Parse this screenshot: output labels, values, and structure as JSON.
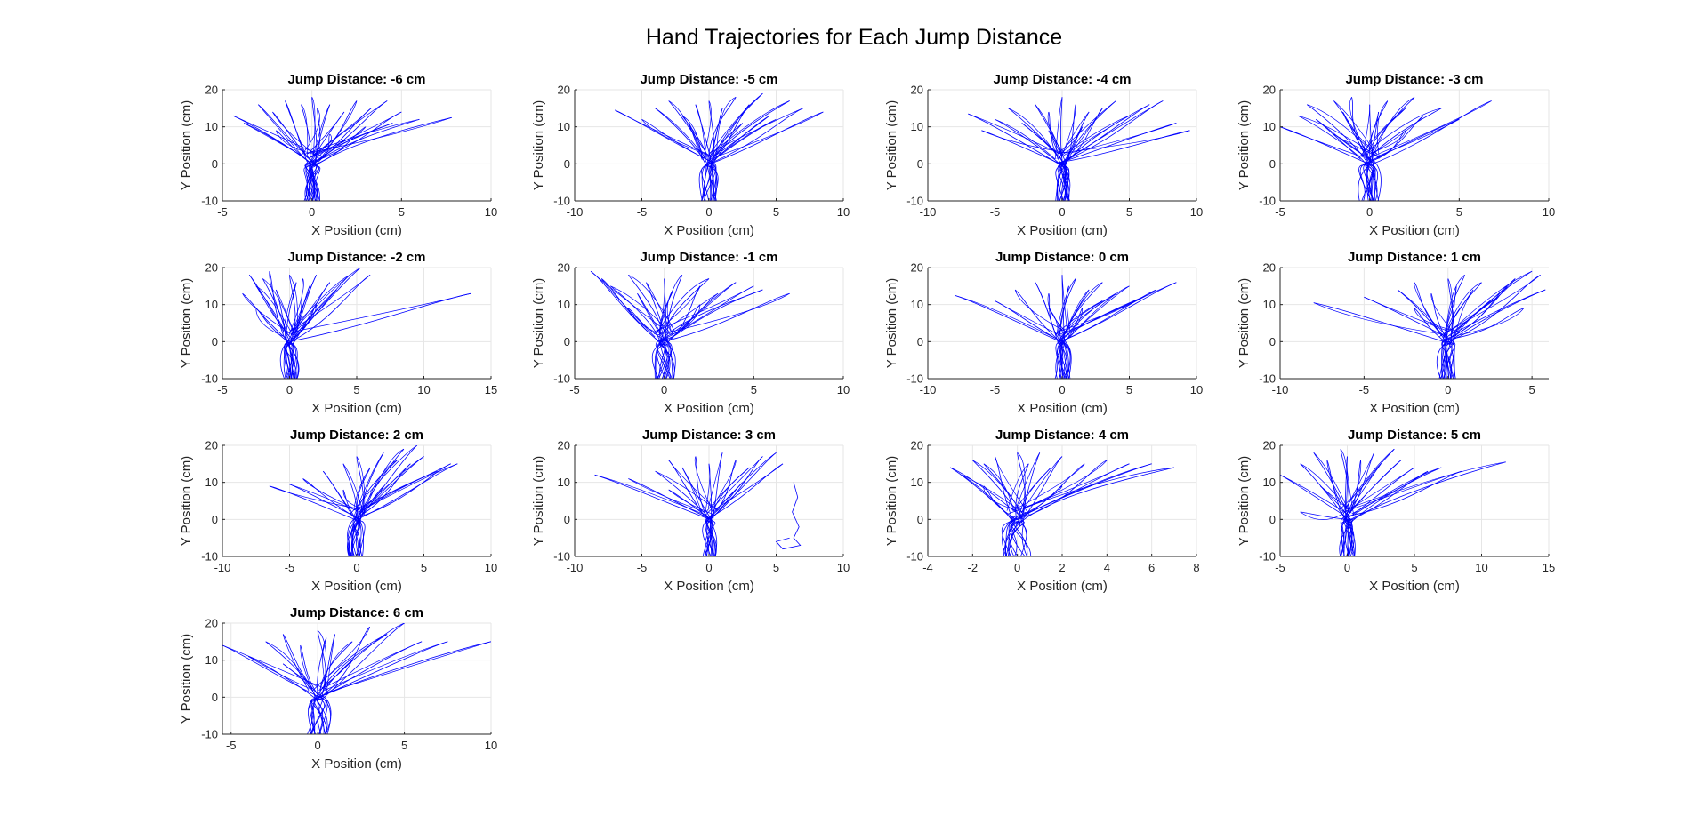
{
  "figure": {
    "title": "Hand Trajectories for Each Jump Distance",
    "line_color": "#0000ff",
    "grid_color": "#e6e6e6",
    "axis_color": "#262626"
  },
  "chart_data": [
    {
      "type": "line",
      "title": "Jump Distance: -6 cm",
      "xlabel": "X Position (cm)",
      "ylabel": "Y Position (cm)",
      "xlim": [
        -5,
        10
      ],
      "ylim": [
        -10,
        20
      ],
      "xticks": [
        -5,
        0,
        5,
        10
      ],
      "yticks": [
        -10,
        0,
        10,
        20
      ],
      "grid": true,
      "center": [
        0,
        0
      ],
      "endpoints": [
        [
          -4.4,
          13
        ],
        [
          -3.8,
          11
        ],
        [
          -3,
          16
        ],
        [
          -2.2,
          14
        ],
        [
          -1.5,
          17
        ],
        [
          -0.6,
          16
        ],
        [
          0,
          18
        ],
        [
          0.3,
          15
        ],
        [
          1,
          16
        ],
        [
          1.8,
          14
        ],
        [
          2.5,
          17
        ],
        [
          3.3,
          15
        ],
        [
          4.2,
          17
        ],
        [
          5,
          14
        ],
        [
          6,
          12
        ],
        [
          7.8,
          12.5
        ],
        [
          3,
          10
        ],
        [
          4.5,
          11
        ],
        [
          -2,
          9
        ],
        [
          1,
          8
        ]
      ],
      "extra_paths": []
    },
    {
      "type": "line",
      "title": "Jump Distance: -5 cm",
      "xlabel": "X Position (cm)",
      "ylabel": "Y Position (cm)",
      "xlim": [
        -10,
        10
      ],
      "ylim": [
        -10,
        20
      ],
      "xticks": [
        -10,
        -5,
        0,
        5,
        10
      ],
      "yticks": [
        -10,
        0,
        10,
        20
      ],
      "grid": true,
      "center": [
        0,
        0
      ],
      "endpoints": [
        [
          -7,
          14.5
        ],
        [
          -5,
          12
        ],
        [
          -4,
          15
        ],
        [
          -3,
          17
        ],
        [
          -2,
          13
        ],
        [
          -1,
          16
        ],
        [
          0,
          17
        ],
        [
          1,
          15
        ],
        [
          2,
          18
        ],
        [
          3,
          16
        ],
        [
          4,
          19
        ],
        [
          5,
          12
        ],
        [
          6,
          17
        ],
        [
          7,
          15
        ],
        [
          8.5,
          14
        ],
        [
          -1.5,
          11
        ],
        [
          2.5,
          11
        ],
        [
          4.5,
          13
        ]
      ],
      "extra_paths": []
    },
    {
      "type": "line",
      "title": "Jump Distance: -4 cm",
      "xlabel": "X Position (cm)",
      "ylabel": "Y Position (cm)",
      "xlim": [
        -10,
        10
      ],
      "ylim": [
        -10,
        20
      ],
      "xticks": [
        -10,
        -5,
        0,
        5,
        10
      ],
      "yticks": [
        -10,
        0,
        10,
        20
      ],
      "grid": true,
      "center": [
        0,
        0
      ],
      "endpoints": [
        [
          -7,
          13.5
        ],
        [
          -6,
          9
        ],
        [
          -5,
          12
        ],
        [
          -4,
          15
        ],
        [
          -3,
          11
        ],
        [
          -2,
          16
        ],
        [
          -1,
          14
        ],
        [
          0,
          18
        ],
        [
          1,
          16
        ],
        [
          2,
          14
        ],
        [
          3,
          15
        ],
        [
          4,
          17
        ],
        [
          5,
          13
        ],
        [
          6.5,
          16
        ],
        [
          7.5,
          17
        ],
        [
          8.5,
          11
        ],
        [
          9.5,
          9
        ],
        [
          1.5,
          10
        ],
        [
          -1,
          9
        ]
      ],
      "extra_paths": []
    },
    {
      "type": "line",
      "title": "Jump Distance: -3 cm",
      "xlabel": "X Position (cm)",
      "ylabel": "Y Position (cm)",
      "xlim": [
        -5,
        10
      ],
      "ylim": [
        -10,
        20
      ],
      "xticks": [
        -5,
        0,
        5,
        10
      ],
      "yticks": [
        -10,
        0,
        10,
        20
      ],
      "grid": true,
      "center": [
        0,
        0
      ],
      "endpoints": [
        [
          -5,
          10
        ],
        [
          -4,
          13
        ],
        [
          -3.5,
          16
        ],
        [
          -3,
          12
        ],
        [
          -2,
          17
        ],
        [
          -1.5,
          14
        ],
        [
          -1,
          18
        ],
        [
          0,
          16
        ],
        [
          0.5,
          14
        ],
        [
          1,
          17
        ],
        [
          2,
          15
        ],
        [
          2.5,
          18
        ],
        [
          3,
          13
        ],
        [
          4,
          15
        ],
        [
          5,
          12
        ],
        [
          6.8,
          17
        ],
        [
          -2,
          8
        ],
        [
          2,
          9
        ]
      ],
      "extra_paths": []
    },
    {
      "type": "line",
      "title": "Jump Distance: -2 cm",
      "xlabel": "X Position (cm)",
      "ylabel": "Y Position (cm)",
      "xlim": [
        -5,
        15
      ],
      "ylim": [
        -10,
        20
      ],
      "xticks": [
        -5,
        0,
        5,
        10,
        15
      ],
      "yticks": [
        -10,
        0,
        10,
        20
      ],
      "grid": true,
      "center": [
        0,
        0
      ],
      "endpoints": [
        [
          -3.5,
          13
        ],
        [
          -3,
          18
        ],
        [
          -2.5,
          15
        ],
        [
          -2,
          17
        ],
        [
          -1.5,
          19
        ],
        [
          -1,
          14
        ],
        [
          0,
          18
        ],
        [
          0.5,
          16
        ],
        [
          1,
          17
        ],
        [
          1.5,
          15
        ],
        [
          2,
          18
        ],
        [
          3,
          16
        ],
        [
          3.5,
          14
        ],
        [
          4.5,
          18
        ],
        [
          5.3,
          20
        ],
        [
          6,
          18
        ],
        [
          13.5,
          13
        ],
        [
          -2.5,
          9
        ],
        [
          2,
          10
        ]
      ],
      "extra_paths": []
    },
    {
      "type": "line",
      "title": "Jump Distance: -1 cm",
      "xlabel": "X Position (cm)",
      "ylabel": "Y Position (cm)",
      "xlim": [
        -5,
        10
      ],
      "ylim": [
        -10,
        20
      ],
      "xticks": [
        -5,
        0,
        5,
        10
      ],
      "yticks": [
        -10,
        0,
        10,
        20
      ],
      "grid": true,
      "center": [
        0,
        0
      ],
      "endpoints": [
        [
          -4.1,
          19
        ],
        [
          -3.5,
          17
        ],
        [
          -3,
          15
        ],
        [
          -2,
          18
        ],
        [
          -1.5,
          13
        ],
        [
          -1,
          16
        ],
        [
          0,
          17
        ],
        [
          0.5,
          14
        ],
        [
          1,
          18
        ],
        [
          2,
          15
        ],
        [
          2.5,
          17
        ],
        [
          3,
          13
        ],
        [
          4,
          16
        ],
        [
          5,
          15
        ],
        [
          5.5,
          14
        ],
        [
          7,
          13
        ],
        [
          -2,
          9
        ],
        [
          2,
          10
        ]
      ],
      "extra_paths": []
    },
    {
      "type": "line",
      "title": "Jump Distance: 0 cm",
      "xlabel": "X Position (cm)",
      "ylabel": "Y Position (cm)",
      "xlim": [
        -10,
        10
      ],
      "ylim": [
        -10,
        20
      ],
      "xticks": [
        -10,
        -5,
        0,
        5,
        10
      ],
      "yticks": [
        -10,
        0,
        10,
        20
      ],
      "grid": true,
      "center": [
        0,
        0
      ],
      "endpoints": [
        [
          -8,
          12.5
        ],
        [
          -5,
          11
        ],
        [
          -3.5,
          14
        ],
        [
          -2,
          16
        ],
        [
          -1,
          13
        ],
        [
          0,
          18
        ],
        [
          0.5,
          15
        ],
        [
          1,
          17
        ],
        [
          2,
          14
        ],
        [
          3,
          16
        ],
        [
          4,
          13
        ],
        [
          5,
          15
        ],
        [
          6,
          12
        ],
        [
          7,
          14
        ],
        [
          8.5,
          16
        ],
        [
          -1,
          9
        ],
        [
          1.5,
          9
        ],
        [
          3,
          11
        ]
      ],
      "extra_paths": []
    },
    {
      "type": "line",
      "title": "Jump Distance: 1 cm",
      "xlabel": "X Position (cm)",
      "ylabel": "Y Position (cm)",
      "xlim": [
        -10,
        6
      ],
      "ylim": [
        -10,
        20
      ],
      "xticks": [
        -10,
        -5,
        0,
        5
      ],
      "yticks": [
        -10,
        0,
        10,
        20
      ],
      "grid": true,
      "center": [
        0,
        0
      ],
      "endpoints": [
        [
          -8,
          10.5
        ],
        [
          -5,
          12
        ],
        [
          -3,
          14
        ],
        [
          -2,
          16
        ],
        [
          -1,
          13
        ],
        [
          0,
          17
        ],
        [
          0.5,
          15
        ],
        [
          1,
          18
        ],
        [
          1.5,
          14
        ],
        [
          2,
          16
        ],
        [
          3,
          12
        ],
        [
          3.5,
          15
        ],
        [
          4,
          17
        ],
        [
          5,
          19
        ],
        [
          5.5,
          18
        ],
        [
          5.8,
          14
        ],
        [
          4.5,
          9
        ],
        [
          -2,
          9
        ]
      ],
      "extra_paths": []
    },
    {
      "type": "line",
      "title": "Jump Distance: 2 cm",
      "xlabel": "X Position (cm)",
      "ylabel": "Y Position (cm)",
      "xlim": [
        -10,
        10
      ],
      "ylim": [
        -10,
        20
      ],
      "xticks": [
        -10,
        -5,
        0,
        5,
        10
      ],
      "yticks": [
        -10,
        0,
        10,
        20
      ],
      "grid": true,
      "center": [
        0,
        0
      ],
      "endpoints": [
        [
          -6.5,
          9
        ],
        [
          -5,
          9.5
        ],
        [
          -4,
          11
        ],
        [
          -2.5,
          13
        ],
        [
          -1,
          15
        ],
        [
          0,
          17
        ],
        [
          1,
          14
        ],
        [
          2,
          18
        ],
        [
          3,
          16
        ],
        [
          3.5,
          19
        ],
        [
          4,
          15
        ],
        [
          4.5,
          20
        ],
        [
          5,
          17
        ],
        [
          6,
          13
        ],
        [
          7,
          15
        ],
        [
          7.5,
          15
        ],
        [
          -1,
          8
        ],
        [
          2,
          9
        ]
      ],
      "extra_paths": []
    },
    {
      "type": "line",
      "title": "Jump Distance: 3 cm",
      "xlabel": "X Position (cm)",
      "ylabel": "Y Position (cm)",
      "xlim": [
        -10,
        10
      ],
      "ylim": [
        -10,
        20
      ],
      "xticks": [
        -10,
        -5,
        0,
        5,
        10
      ],
      "yticks": [
        -10,
        0,
        10,
        20
      ],
      "grid": true,
      "center": [
        0,
        0
      ],
      "endpoints": [
        [
          -8.5,
          12
        ],
        [
          -6,
          11
        ],
        [
          -4,
          13
        ],
        [
          -3,
          16
        ],
        [
          -2,
          14
        ],
        [
          -1,
          17
        ],
        [
          0,
          15
        ],
        [
          1,
          18
        ],
        [
          2,
          16
        ],
        [
          3,
          14
        ],
        [
          4,
          17
        ],
        [
          5,
          18
        ],
        [
          5.5,
          15
        ],
        [
          -3,
          8
        ],
        [
          2.5,
          10
        ]
      ],
      "extra_paths": [
        [
          [
            6.3,
            10
          ],
          [
            6.6,
            6
          ],
          [
            6.2,
            2
          ],
          [
            6.7,
            -2
          ],
          [
            6.3,
            -5
          ],
          [
            6.8,
            -7
          ],
          [
            5.5,
            -8
          ],
          [
            5,
            -6
          ],
          [
            6,
            -5
          ]
        ]
      ]
    },
    {
      "type": "line",
      "title": "Jump Distance: 4 cm",
      "xlabel": "X Position (cm)",
      "ylabel": "Y Position (cm)",
      "xlim": [
        -4,
        8
      ],
      "ylim": [
        -10,
        20
      ],
      "xticks": [
        -4,
        -2,
        0,
        2,
        4,
        6,
        8
      ],
      "yticks": [
        -10,
        0,
        10,
        20
      ],
      "grid": true,
      "center": [
        0,
        0
      ],
      "endpoints": [
        [
          -3,
          14
        ],
        [
          -2.5,
          12
        ],
        [
          -2,
          16
        ],
        [
          -1.5,
          15
        ],
        [
          -1,
          17
        ],
        [
          0,
          18
        ],
        [
          0.5,
          15
        ],
        [
          1,
          18
        ],
        [
          1.5,
          14
        ],
        [
          2,
          17
        ],
        [
          3,
          15
        ],
        [
          4,
          16
        ],
        [
          5,
          15
        ],
        [
          6,
          15
        ],
        [
          7,
          14
        ],
        [
          -1.5,
          9
        ],
        [
          2,
          9
        ]
      ],
      "extra_paths": []
    },
    {
      "type": "line",
      "title": "Jump Distance: 5 cm",
      "xlabel": "X Position (cm)",
      "ylabel": "Y Position (cm)",
      "xlim": [
        -5,
        15
      ],
      "ylim": [
        -10,
        20
      ],
      "xticks": [
        -5,
        0,
        5,
        10,
        15
      ],
      "yticks": [
        -10,
        0,
        10,
        20
      ],
      "grid": true,
      "center": [
        0,
        0
      ],
      "endpoints": [
        [
          -5,
          12
        ],
        [
          -3.5,
          15
        ],
        [
          -2.5,
          18
        ],
        [
          -1.5,
          16
        ],
        [
          -0.5,
          19
        ],
        [
          0,
          17
        ],
        [
          1,
          16
        ],
        [
          2,
          18
        ],
        [
          2.5,
          15
        ],
        [
          3.5,
          19
        ],
        [
          4,
          16
        ],
        [
          5,
          14
        ],
        [
          6,
          13
        ],
        [
          7,
          14
        ],
        [
          8.5,
          13
        ],
        [
          11.8,
          15.5
        ],
        [
          -3.5,
          2
        ],
        [
          -2,
          9
        ]
      ],
      "extra_paths": []
    },
    {
      "type": "line",
      "title": "Jump Distance: 6 cm",
      "xlabel": "X Position (cm)",
      "ylabel": "Y Position (cm)",
      "xlim": [
        -5.5,
        10
      ],
      "ylim": [
        -10,
        20
      ],
      "xticks": [
        -5,
        0,
        5,
        10
      ],
      "yticks": [
        -10,
        0,
        10,
        20
      ],
      "grid": true,
      "center": [
        0,
        0
      ],
      "endpoints": [
        [
          -5.5,
          14
        ],
        [
          -4,
          11
        ],
        [
          -3,
          15
        ],
        [
          -2,
          17
        ],
        [
          -1,
          14
        ],
        [
          0,
          18
        ],
        [
          0.5,
          16
        ],
        [
          1,
          17
        ],
        [
          2,
          15
        ],
        [
          3,
          19
        ],
        [
          4,
          17
        ],
        [
          5,
          20
        ],
        [
          6,
          15
        ],
        [
          7.5,
          15
        ],
        [
          10,
          15
        ],
        [
          -2,
          9
        ],
        [
          2,
          10
        ]
      ],
      "extra_paths": []
    }
  ]
}
